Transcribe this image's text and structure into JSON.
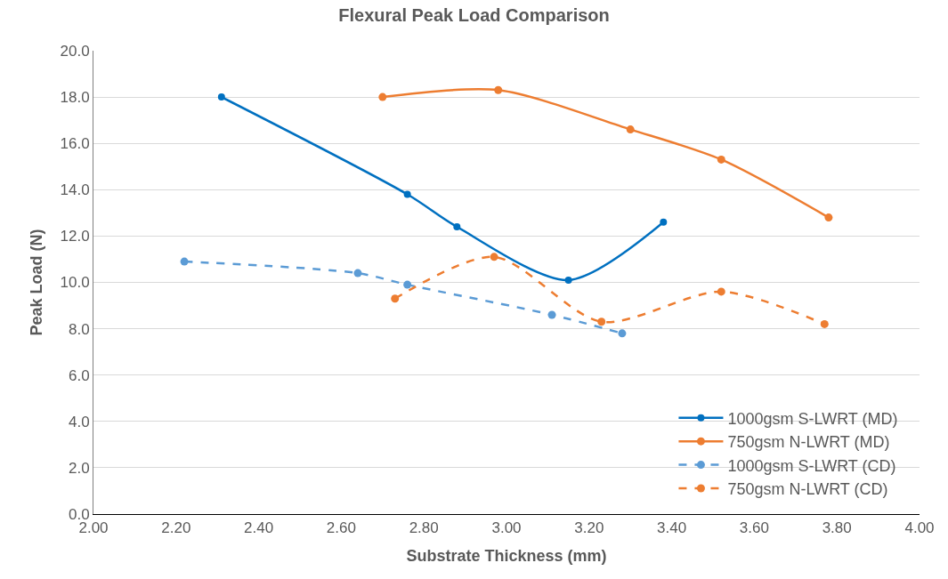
{
  "chart_data": {
    "type": "line",
    "title": "Flexural Peak Load Comparison",
    "xlabel": "Substrate Thickness (mm)",
    "ylabel": "Peak Load (N)",
    "xlim": [
      2.0,
      4.0
    ],
    "xticks": [
      {
        "value": 2.0,
        "label": "2.00"
      },
      {
        "value": 2.2,
        "label": "2.20"
      },
      {
        "value": 2.4,
        "label": "2.40"
      },
      {
        "value": 2.6,
        "label": "2.60"
      },
      {
        "value": 2.8,
        "label": "2.80"
      },
      {
        "value": 3.0,
        "label": "3.00"
      },
      {
        "value": 3.2,
        "label": "3.20"
      },
      {
        "value": 3.4,
        "label": "3.40"
      },
      {
        "value": 3.6,
        "label": "3.60"
      },
      {
        "value": 3.8,
        "label": "3.80"
      },
      {
        "value": 4.0,
        "label": "4.00"
      }
    ],
    "ylim": [
      0,
      20
    ],
    "yticks": [
      {
        "value": 0,
        "label": "0.0"
      },
      {
        "value": 2,
        "label": "2.0"
      },
      {
        "value": 4,
        "label": "4.0"
      },
      {
        "value": 6,
        "label": "6.0"
      },
      {
        "value": 8,
        "label": "8.0"
      },
      {
        "value": 10,
        "label": "10.0"
      },
      {
        "value": 12,
        "label": "12.0"
      },
      {
        "value": 14,
        "label": "14.0"
      },
      {
        "value": 16,
        "label": "16.0"
      },
      {
        "value": 18,
        "label": "18.0"
      },
      {
        "value": 20,
        "label": "20.0"
      }
    ],
    "grid": "y",
    "legend": "bottom right",
    "marker": "circle",
    "series": [
      {
        "name": "1000gsm S-LWRT (MD)",
        "color": "#0070c0",
        "line_style": "solid",
        "x": [
          2.31,
          2.76,
          2.88,
          3.15,
          3.38
        ],
        "values": [
          18.0,
          13.8,
          12.4,
          10.1,
          12.6
        ]
      },
      {
        "name": "750gsm N-LWRT (MD)",
        "color": "#ed7d31",
        "line_style": "solid",
        "x": [
          2.7,
          2.98,
          3.3,
          3.52,
          3.78
        ],
        "values": [
          18.0,
          18.3,
          16.6,
          15.3,
          12.8
        ]
      },
      {
        "name": "1000gsm S-LWRT (CD)",
        "color": "#5b9bd5",
        "line_style": "dashed",
        "x": [
          2.22,
          2.64,
          2.76,
          3.11,
          3.28
        ],
        "values": [
          10.9,
          10.4,
          9.9,
          8.6,
          7.8
        ]
      },
      {
        "name": "750gsm N-LWRT (CD)",
        "color": "#ed7d31",
        "line_style": "dashed",
        "x": [
          2.73,
          2.97,
          3.23,
          3.52,
          3.77
        ],
        "values": [
          9.3,
          11.1,
          8.3,
          9.6,
          8.2
        ]
      }
    ]
  }
}
